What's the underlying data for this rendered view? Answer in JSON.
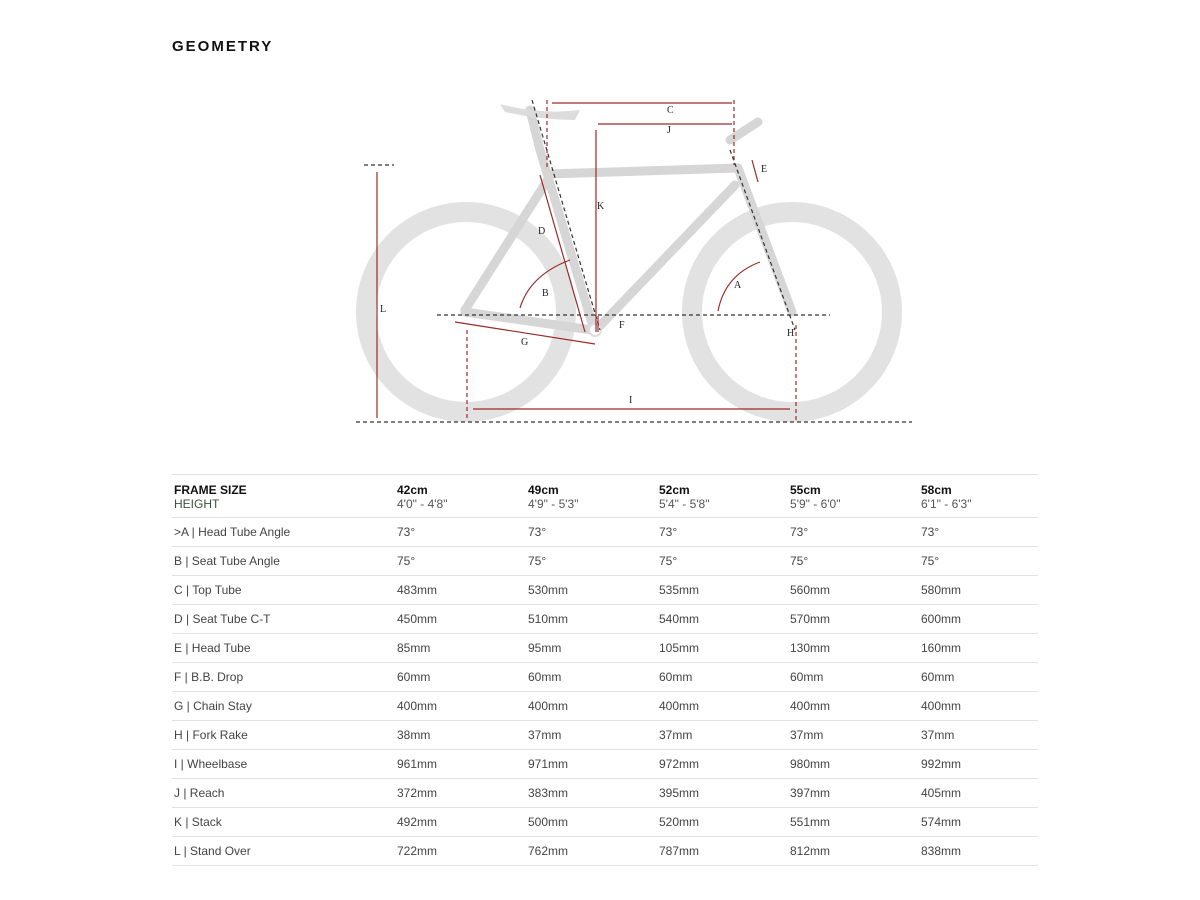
{
  "title": "GEOMETRY",
  "colors": {
    "dimension": "#9b2a2a",
    "wheel": "#e4e4e4",
    "frame": "#d4d4d4"
  },
  "diagram_labels": {
    "A": "A",
    "B": "B",
    "C": "C",
    "D": "D",
    "E": "E",
    "F": "F",
    "G": "G",
    "H": "H",
    "I": "I",
    "J": "J",
    "K": "K",
    "L": "L"
  },
  "table": {
    "header": {
      "label": "FRAME SIZE",
      "sizes": [
        "42cm",
        "49cm",
        "52cm",
        "55cm",
        "58cm"
      ]
    },
    "height": {
      "label": "HEIGHT",
      "values": [
        "4'0\" - 4'8\"",
        "4'9\" - 5'3\"",
        "5'4\" - 5'8\"",
        "5'9\" - 6'0\"",
        "6'1\" - 6'3\""
      ]
    },
    "rows": [
      {
        "label": ">A | Head Tube Angle",
        "values": [
          "73°",
          "73°",
          "73°",
          "73°",
          "73°"
        ]
      },
      {
        "label": "B | Seat Tube Angle",
        "values": [
          "75°",
          "75°",
          "75°",
          "75°",
          "75°"
        ]
      },
      {
        "label": "C | Top Tube",
        "values": [
          "483mm",
          "530mm",
          "535mm",
          "560mm",
          "580mm"
        ]
      },
      {
        "label": "D | Seat Tube C-T",
        "values": [
          "450mm",
          "510mm",
          "540mm",
          "570mm",
          "600mm"
        ]
      },
      {
        "label": "E | Head Tube",
        "values": [
          "85mm",
          "95mm",
          "105mm",
          "130mm",
          "160mm"
        ]
      },
      {
        "label": "F | B.B. Drop",
        "values": [
          "60mm",
          "60mm",
          "60mm",
          "60mm",
          "60mm"
        ]
      },
      {
        "label": "G | Chain Stay",
        "values": [
          "400mm",
          "400mm",
          "400mm",
          "400mm",
          "400mm"
        ]
      },
      {
        "label": "H | Fork Rake",
        "values": [
          "38mm",
          "37mm",
          "37mm",
          "37mm",
          "37mm"
        ]
      },
      {
        "label": "I | Wheelbase",
        "values": [
          "961mm",
          "971mm",
          "972mm",
          "980mm",
          "992mm"
        ]
      },
      {
        "label": "J | Reach",
        "values": [
          "372mm",
          "383mm",
          "395mm",
          "397mm",
          "405mm"
        ]
      },
      {
        "label": "K | Stack",
        "values": [
          "492mm",
          "500mm",
          "520mm",
          "551mm",
          "574mm"
        ]
      },
      {
        "label": "L | Stand Over",
        "values": [
          "722mm",
          "762mm",
          "787mm",
          "812mm",
          "838mm"
        ]
      }
    ]
  }
}
